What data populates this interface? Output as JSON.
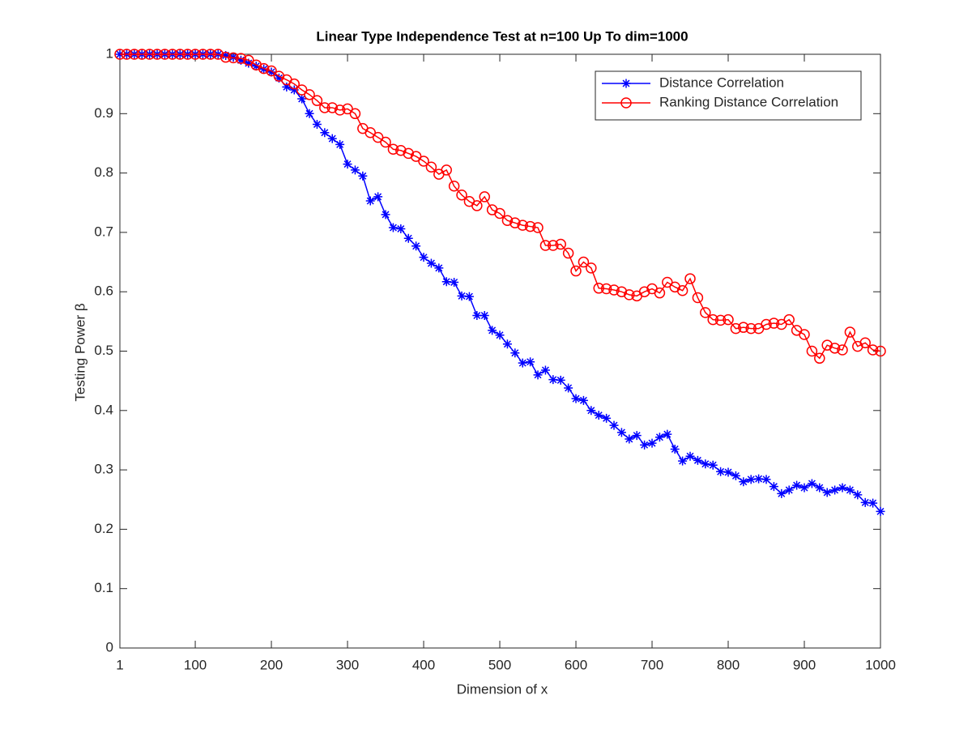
{
  "chart_data": {
    "type": "line",
    "title": "Linear Type Independence Test at n=100 Up To dim=1000",
    "xlabel": "Dimension of x",
    "ylabel": "Testing Power β",
    "x": [
      1,
      10,
      20,
      30,
      40,
      50,
      60,
      70,
      80,
      90,
      100,
      110,
      120,
      130,
      140,
      150,
      160,
      170,
      180,
      190,
      200,
      210,
      220,
      230,
      240,
      250,
      260,
      270,
      280,
      290,
      300,
      310,
      320,
      330,
      340,
      350,
      360,
      370,
      380,
      390,
      400,
      410,
      420,
      430,
      440,
      450,
      460,
      470,
      480,
      490,
      500,
      510,
      520,
      530,
      540,
      550,
      560,
      570,
      580,
      590,
      600,
      610,
      620,
      630,
      640,
      650,
      660,
      670,
      680,
      690,
      700,
      710,
      720,
      730,
      740,
      750,
      760,
      770,
      780,
      790,
      800,
      810,
      820,
      830,
      840,
      850,
      860,
      870,
      880,
      890,
      900,
      910,
      920,
      930,
      940,
      950,
      960,
      970,
      980,
      990,
      1000
    ],
    "series": [
      {
        "name": "Distance Correlation",
        "color": "#0000ff",
        "marker": "asterisk",
        "values": [
          1,
          1,
          1,
          1,
          1,
          1,
          1,
          1,
          1,
          1,
          1,
          1,
          1,
          1,
          0.998,
          0.995,
          0.99,
          0.985,
          0.98,
          0.975,
          0.97,
          0.96,
          0.945,
          0.94,
          0.925,
          0.9,
          0.882,
          0.868,
          0.858,
          0.848,
          0.815,
          0.805,
          0.795,
          0.753,
          0.76,
          0.73,
          0.708,
          0.706,
          0.69,
          0.677,
          0.658,
          0.648,
          0.64,
          0.617,
          0.616,
          0.593,
          0.592,
          0.56,
          0.56,
          0.535,
          0.527,
          0.512,
          0.497,
          0.48,
          0.482,
          0.46,
          0.468,
          0.452,
          0.451,
          0.438,
          0.42,
          0.417,
          0.4,
          0.392,
          0.387,
          0.375,
          0.363,
          0.352,
          0.358,
          0.342,
          0.345,
          0.355,
          0.36,
          0.335,
          0.315,
          0.323,
          0.316,
          0.31,
          0.308,
          0.297,
          0.296,
          0.29,
          0.28,
          0.284,
          0.285,
          0.284,
          0.272,
          0.26,
          0.266,
          0.274,
          0.27,
          0.277,
          0.27,
          0.262,
          0.266,
          0.27,
          0.266,
          0.258,
          0.245,
          0.244,
          0.23
        ]
      },
      {
        "name": "Ranking Distance Correlation",
        "color": "#ff0000",
        "marker": "circle",
        "values": [
          1,
          1,
          1,
          1,
          1,
          1,
          1,
          1,
          1,
          1,
          1,
          1,
          1,
          1,
          0.995,
          0.994,
          0.993,
          0.99,
          0.982,
          0.976,
          0.972,
          0.963,
          0.957,
          0.95,
          0.94,
          0.932,
          0.922,
          0.91,
          0.91,
          0.906,
          0.908,
          0.9,
          0.875,
          0.868,
          0.86,
          0.852,
          0.84,
          0.838,
          0.833,
          0.828,
          0.82,
          0.81,
          0.798,
          0.805,
          0.778,
          0.763,
          0.752,
          0.745,
          0.76,
          0.738,
          0.732,
          0.72,
          0.716,
          0.712,
          0.71,
          0.708,
          0.678,
          0.678,
          0.68,
          0.665,
          0.635,
          0.65,
          0.64,
          0.606,
          0.605,
          0.603,
          0.6,
          0.595,
          0.593,
          0.6,
          0.605,
          0.598,
          0.616,
          0.608,
          0.602,
          0.622,
          0.59,
          0.565,
          0.553,
          0.552,
          0.553,
          0.538,
          0.54,
          0.538,
          0.538,
          0.545,
          0.547,
          0.545,
          0.553,
          0.535,
          0.528,
          0.5,
          0.488,
          0.51,
          0.505,
          0.502,
          0.532,
          0.508,
          0.514,
          0.502,
          0.5
        ]
      }
    ],
    "xlim": [
      1,
      1000
    ],
    "xticks": [
      1,
      100,
      200,
      300,
      400,
      500,
      600,
      700,
      800,
      900,
      1000
    ],
    "ylim": [
      0,
      1
    ],
    "yticks": [
      0,
      0.1,
      0.2,
      0.3,
      0.4,
      0.5,
      0.6,
      0.7,
      0.8,
      0.9,
      1
    ],
    "legend": "northeast"
  }
}
